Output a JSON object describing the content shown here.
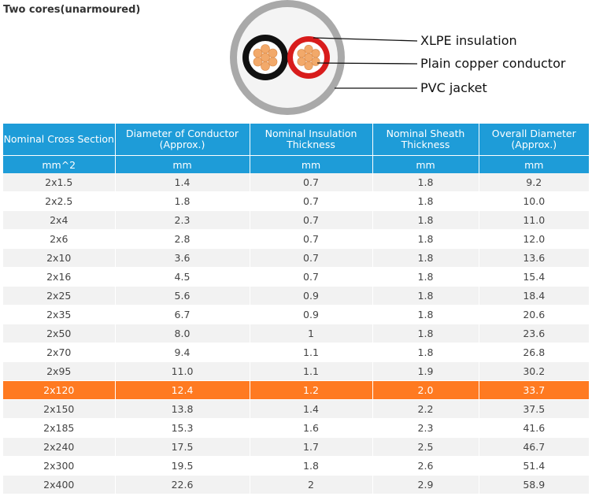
{
  "title": "Two cores(unarmoured)",
  "diagram": {
    "labels": {
      "xlpe": "XLPE insulation",
      "conductor": "Plain copper conductor",
      "jacket": "PVC jacket"
    },
    "colors": {
      "jacket_outer": "#a9a9a9",
      "jacket_inner": "#f4f4f4",
      "core_black": "#111111",
      "core_red": "#d81c1c",
      "copper": "#f2a96a"
    }
  },
  "table": {
    "headers": [
      "Nominal Cross Section",
      "Diameter of Conductor (Approx.)",
      "Nominal Insulation Thickness",
      "Nominal Sheath Thickness",
      "Overall Diameter (Approx.)"
    ],
    "units": [
      "mm^2",
      "mm",
      "mm",
      "mm",
      "mm"
    ],
    "rows": [
      [
        "2x1.5",
        "1.4",
        "0.7",
        "1.8",
        "9.2"
      ],
      [
        "2x2.5",
        "1.8",
        "0.7",
        "1.8",
        "10.0"
      ],
      [
        "2x4",
        "2.3",
        "0.7",
        "1.8",
        "11.0"
      ],
      [
        "2x6",
        "2.8",
        "0.7",
        "1.8",
        "12.0"
      ],
      [
        "2x10",
        "3.6",
        "0.7",
        "1.8",
        "13.6"
      ],
      [
        "2x16",
        "4.5",
        "0.7",
        "1.8",
        "15.4"
      ],
      [
        "2x25",
        "5.6",
        "0.9",
        "1.8",
        "18.4"
      ],
      [
        "2x35",
        "6.7",
        "0.9",
        "1.8",
        "20.6"
      ],
      [
        "2x50",
        "8.0",
        "1",
        "1.8",
        "23.6"
      ],
      [
        "2x70",
        "9.4",
        "1.1",
        "1.8",
        "26.8"
      ],
      [
        "2x95",
        "11.0",
        "1.1",
        "1.9",
        "30.2"
      ],
      [
        "2x120",
        "12.4",
        "1.2",
        "2.0",
        "33.7"
      ],
      [
        "2x150",
        "13.8",
        "1.4",
        "2.2",
        "37.5"
      ],
      [
        "2x185",
        "15.3",
        "1.6",
        "2.3",
        "41.6"
      ],
      [
        "2x240",
        "17.5",
        "1.7",
        "2.5",
        "46.7"
      ],
      [
        "2x300",
        "19.5",
        "1.8",
        "2.6",
        "51.4"
      ],
      [
        "2x400",
        "22.6",
        "2",
        "2.9",
        "58.9"
      ]
    ],
    "highlighted_row": "2x120",
    "colors": {
      "header": "#1e9cd8",
      "highlight": "#ff7a21",
      "stripe": "#f2f2f2"
    }
  }
}
